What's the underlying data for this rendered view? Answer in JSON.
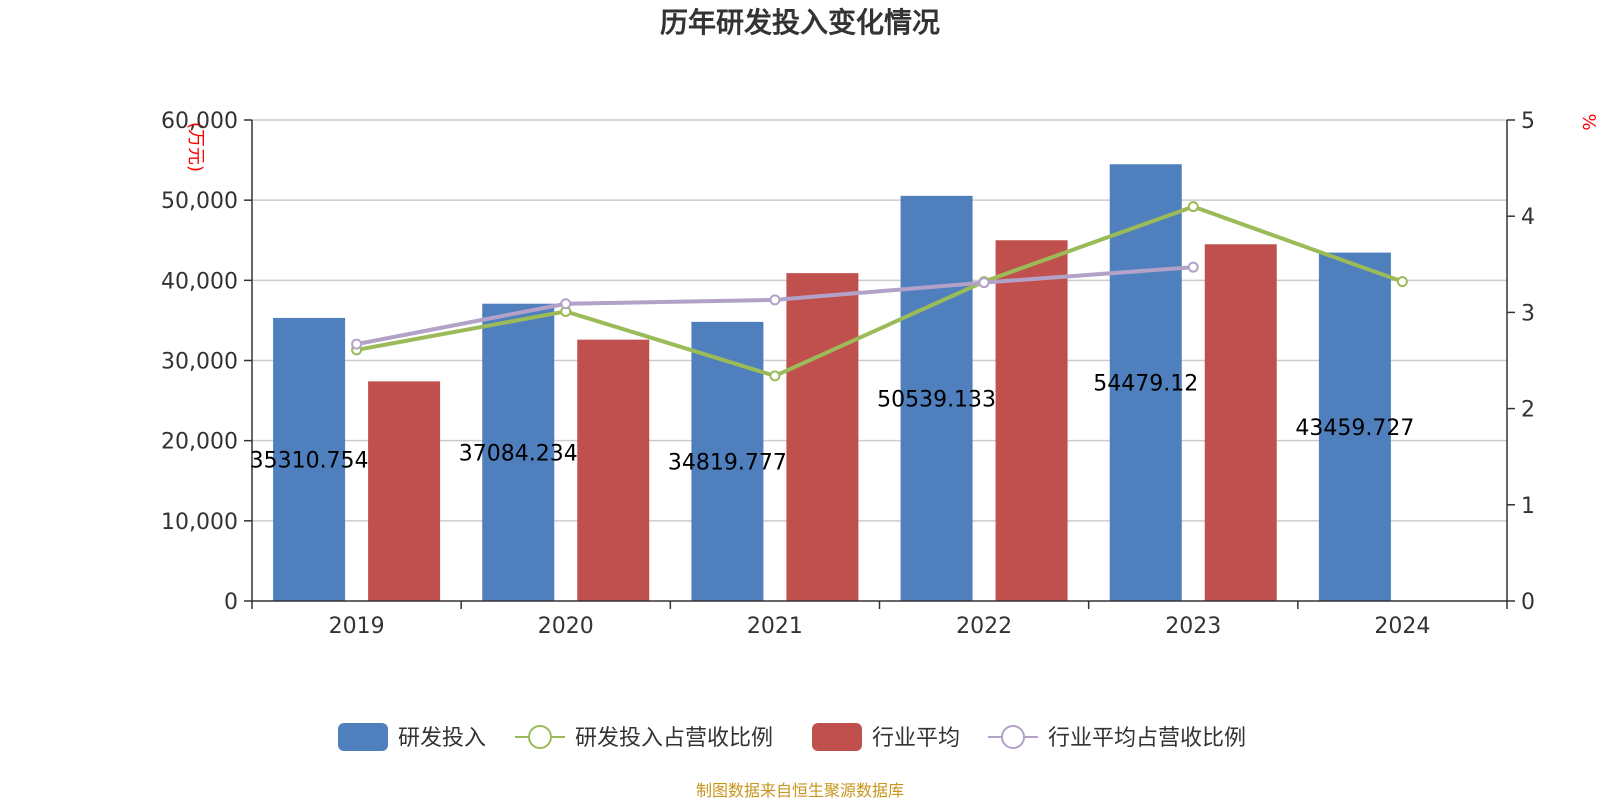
{
  "chart_data": {
    "type": "bar",
    "title": "历年研发投入变化情况",
    "categories": [
      "2019",
      "2020",
      "2021",
      "2022",
      "2023",
      "2024"
    ],
    "left_axis": {
      "unit": "(万元)",
      "min": 0,
      "max": 60000,
      "ticks": [
        "0",
        "10,000",
        "20,000",
        "30,000",
        "40,000",
        "50,000",
        "60,000"
      ]
    },
    "right_axis": {
      "unit": "%",
      "min": 0,
      "max": 5,
      "ticks": [
        "0",
        "1",
        "2",
        "3",
        "4",
        "5"
      ]
    },
    "grid": true,
    "legend_position": "bottom",
    "series": [
      {
        "name": "研发投入",
        "kind": "bar",
        "axis": "left",
        "color": "#4f7fbc",
        "values": [
          35310.754,
          37084.234,
          34819.777,
          50539.133,
          54479.12,
          43459.727
        ],
        "labels": [
          "35310.754",
          "37084.234",
          "34819.777",
          "50539.133",
          "54479.12",
          "43459.727"
        ]
      },
      {
        "name": "研发投入占营收比例",
        "kind": "line",
        "axis": "right",
        "color": "#9bbb59",
        "values": [
          2.61,
          3.01,
          2.34,
          3.32,
          4.1,
          3.32
        ]
      },
      {
        "name": "行业平均",
        "kind": "bar",
        "axis": "left",
        "color": "#c0504d",
        "values": [
          27400,
          32600,
          40900,
          45000,
          44500,
          null
        ]
      },
      {
        "name": "行业平均占营收比例",
        "kind": "line",
        "axis": "right",
        "color": "#b3a2c7",
        "values": [
          2.67,
          3.09,
          3.13,
          3.31,
          3.47,
          null
        ]
      }
    ],
    "source": "制图数据来自恒生聚源数据库",
    "source_color": "#c8961e"
  }
}
